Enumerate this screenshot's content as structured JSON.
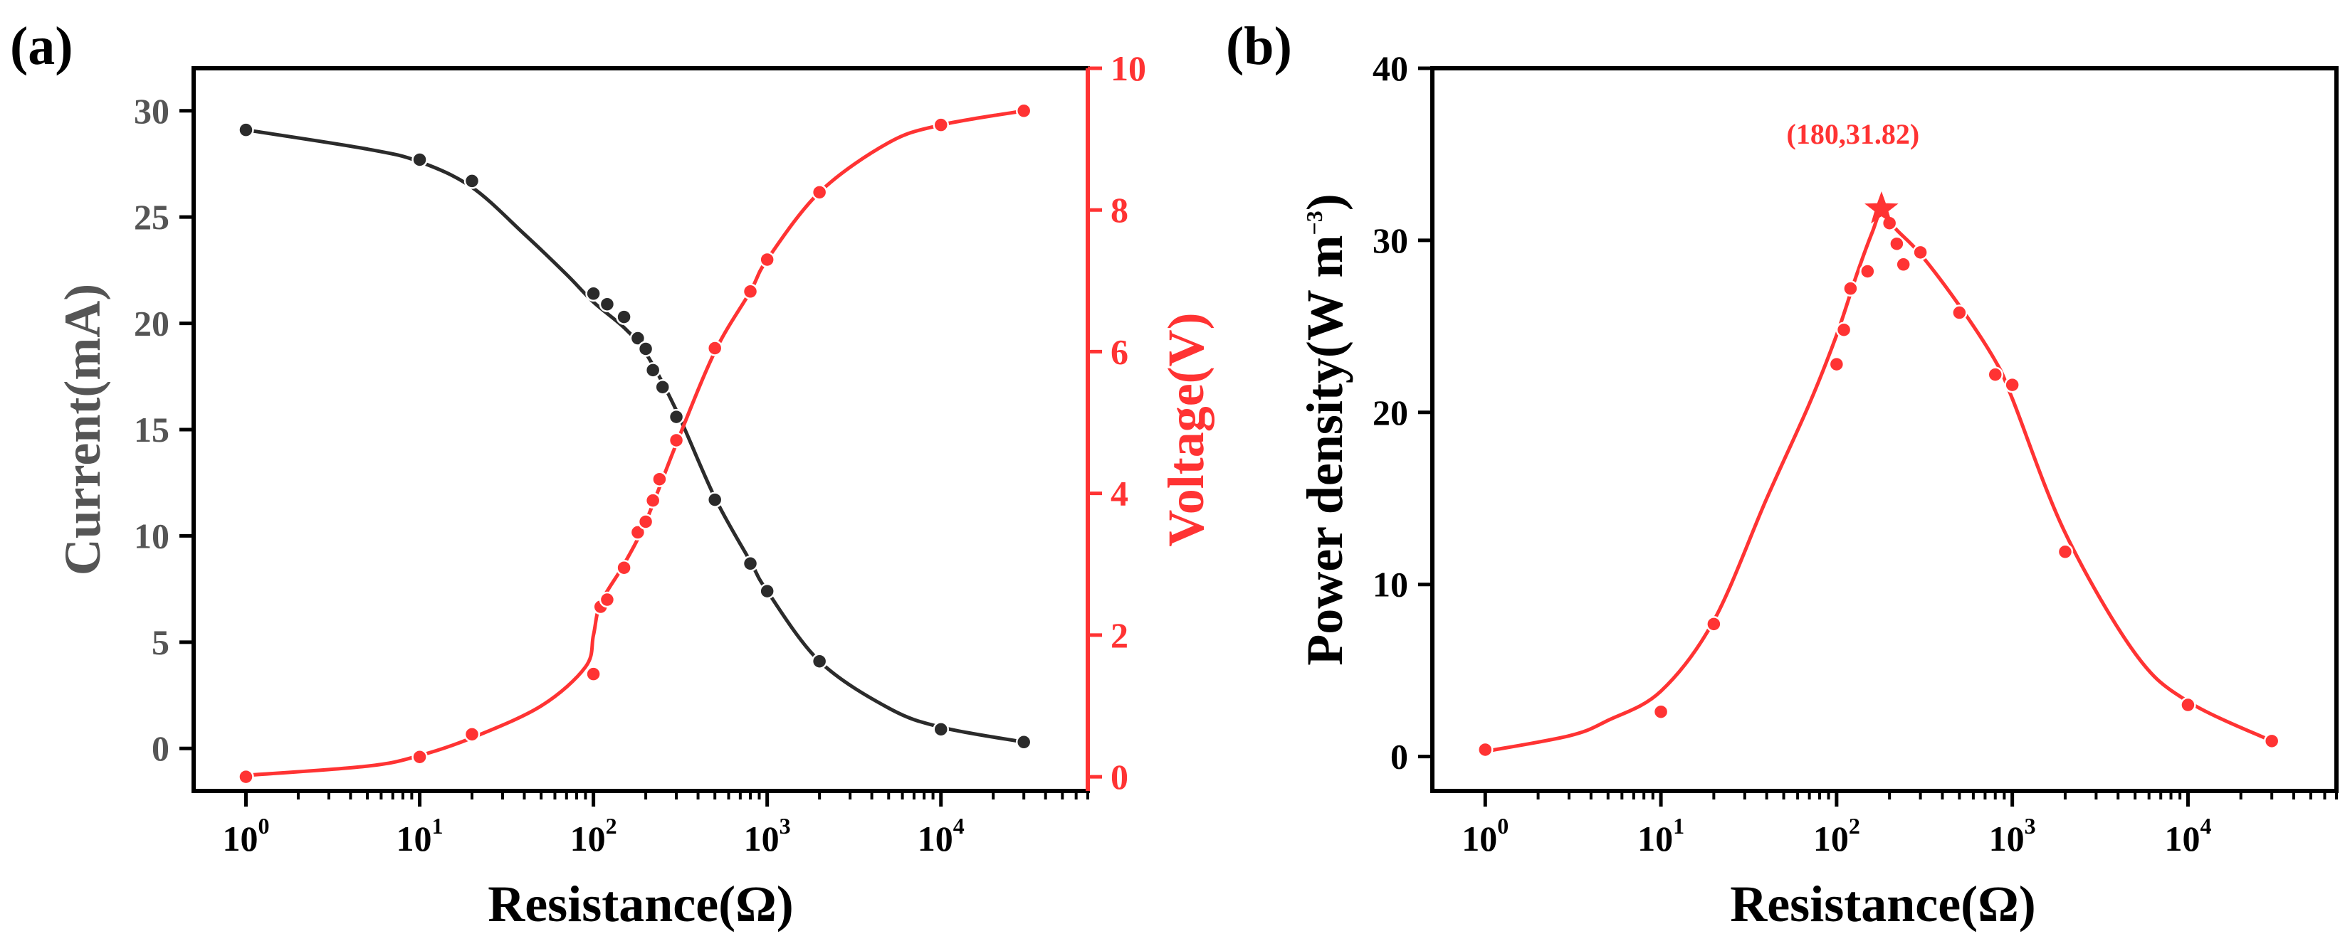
{
  "colors": {
    "black": "#2b2b2b",
    "red": "#ff3333",
    "axis": "#000000"
  },
  "chart_data": [
    {
      "panel_label": "(a)",
      "type": "line",
      "xscale": "log",
      "xlim": [
        0.5,
        70000
      ],
      "xlabel": "Resistance(Ω)",
      "x_tick_base": "10",
      "x_tick_exponents": [
        "0",
        "1",
        "2",
        "3",
        "4"
      ],
      "y_left": {
        "label": "Current(mA)",
        "lim": [
          -2,
          32
        ],
        "ticks": [
          "0",
          "5",
          "10",
          "15",
          "20",
          "25",
          "30"
        ],
        "color": "#2b2b2b"
      },
      "y_right": {
        "label": "Voltage(V)",
        "lim": [
          -0.2,
          10
        ],
        "ticks": [
          "0",
          "2",
          "4",
          "6",
          "8",
          "10"
        ],
        "color": "#ff3333"
      },
      "series": [
        {
          "name": "Current",
          "axis": "left",
          "x": [
            1,
            10,
            20,
            100,
            120,
            150,
            180,
            200,
            220,
            250,
            300,
            500,
            800,
            1000,
            2000,
            10000,
            30000
          ],
          "y": [
            29.1,
            27.7,
            26.7,
            21.4,
            20.9,
            20.3,
            19.3,
            18.8,
            17.8,
            17.0,
            15.6,
            11.7,
            8.7,
            7.4,
            4.1,
            0.9,
            0.3
          ],
          "fit_x": [
            1,
            5,
            10,
            20,
            40,
            70,
            100,
            150,
            200,
            300,
            500,
            800,
            1000,
            2000,
            5000,
            10000,
            30000
          ],
          "fit_y": [
            29.1,
            28.2,
            27.6,
            26.4,
            24.2,
            22.3,
            21.0,
            19.8,
            18.6,
            15.9,
            11.8,
            8.8,
            7.4,
            4.1,
            1.9,
            1.0,
            0.3
          ]
        },
        {
          "name": "Voltage",
          "axis": "right",
          "x": [
            1,
            10,
            20,
            100,
            110,
            120,
            150,
            180,
            200,
            220,
            240,
            300,
            500,
            800,
            1000,
            2000,
            10000,
            30000
          ],
          "y": [
            0.0,
            0.28,
            0.6,
            1.45,
            2.4,
            2.5,
            2.95,
            3.45,
            3.6,
            3.9,
            4.2,
            4.75,
            6.05,
            6.85,
            7.3,
            8.25,
            9.2,
            9.4
          ],
          "fit_x": [
            1,
            5,
            10,
            20,
            50,
            90,
            100,
            110,
            150,
            200,
            300,
            500,
            800,
            1000,
            2000,
            5000,
            10000,
            30000
          ],
          "fit_y": [
            0.02,
            0.15,
            0.3,
            0.55,
            1.0,
            1.55,
            2.0,
            2.45,
            3.0,
            3.6,
            4.7,
            6.0,
            6.85,
            7.3,
            8.25,
            8.95,
            9.2,
            9.4
          ]
        }
      ]
    },
    {
      "panel_label": "(b)",
      "type": "scatter",
      "xscale": "log",
      "xlim": [
        0.5,
        70000
      ],
      "xlabel": "Resistance(Ω)",
      "x_tick_base": "10",
      "x_tick_exponents": [
        "0",
        "1",
        "2",
        "3",
        "4"
      ],
      "ylabel": "Power density(W m",
      "ylabel_unit_exponent": "−3",
      "ylabel_close": ")",
      "ylim": [
        -2,
        40
      ],
      "y_ticks": [
        "0",
        "10",
        "20",
        "30",
        "40"
      ],
      "series": [
        {
          "name": "Power density",
          "x": [
            1,
            10,
            20,
            100,
            110,
            120,
            150,
            200,
            220,
            240,
            300,
            500,
            800,
            1000,
            2000,
            10000,
            30000
          ],
          "y": [
            0.4,
            2.6,
            7.7,
            22.8,
            24.8,
            27.2,
            28.2,
            31.0,
            29.8,
            28.6,
            29.3,
            25.8,
            22.2,
            21.6,
            11.9,
            3.0,
            0.9
          ],
          "fit_x": [
            1,
            3,
            5,
            10,
            20,
            40,
            70,
            100,
            130,
            160,
            180,
            220,
            300,
            500,
            800,
            1000,
            2000,
            5000,
            10000,
            30000
          ],
          "fit_y": [
            0.3,
            1.2,
            2.1,
            3.8,
            7.9,
            15.0,
            20.5,
            24.5,
            28.0,
            30.5,
            31.6,
            30.6,
            29.2,
            26.2,
            23.0,
            20.8,
            13.0,
            6.0,
            3.2,
            0.9
          ]
        }
      ],
      "peak": {
        "x": 180,
        "y": 31.82,
        "label": "(180,31.82)"
      }
    }
  ]
}
